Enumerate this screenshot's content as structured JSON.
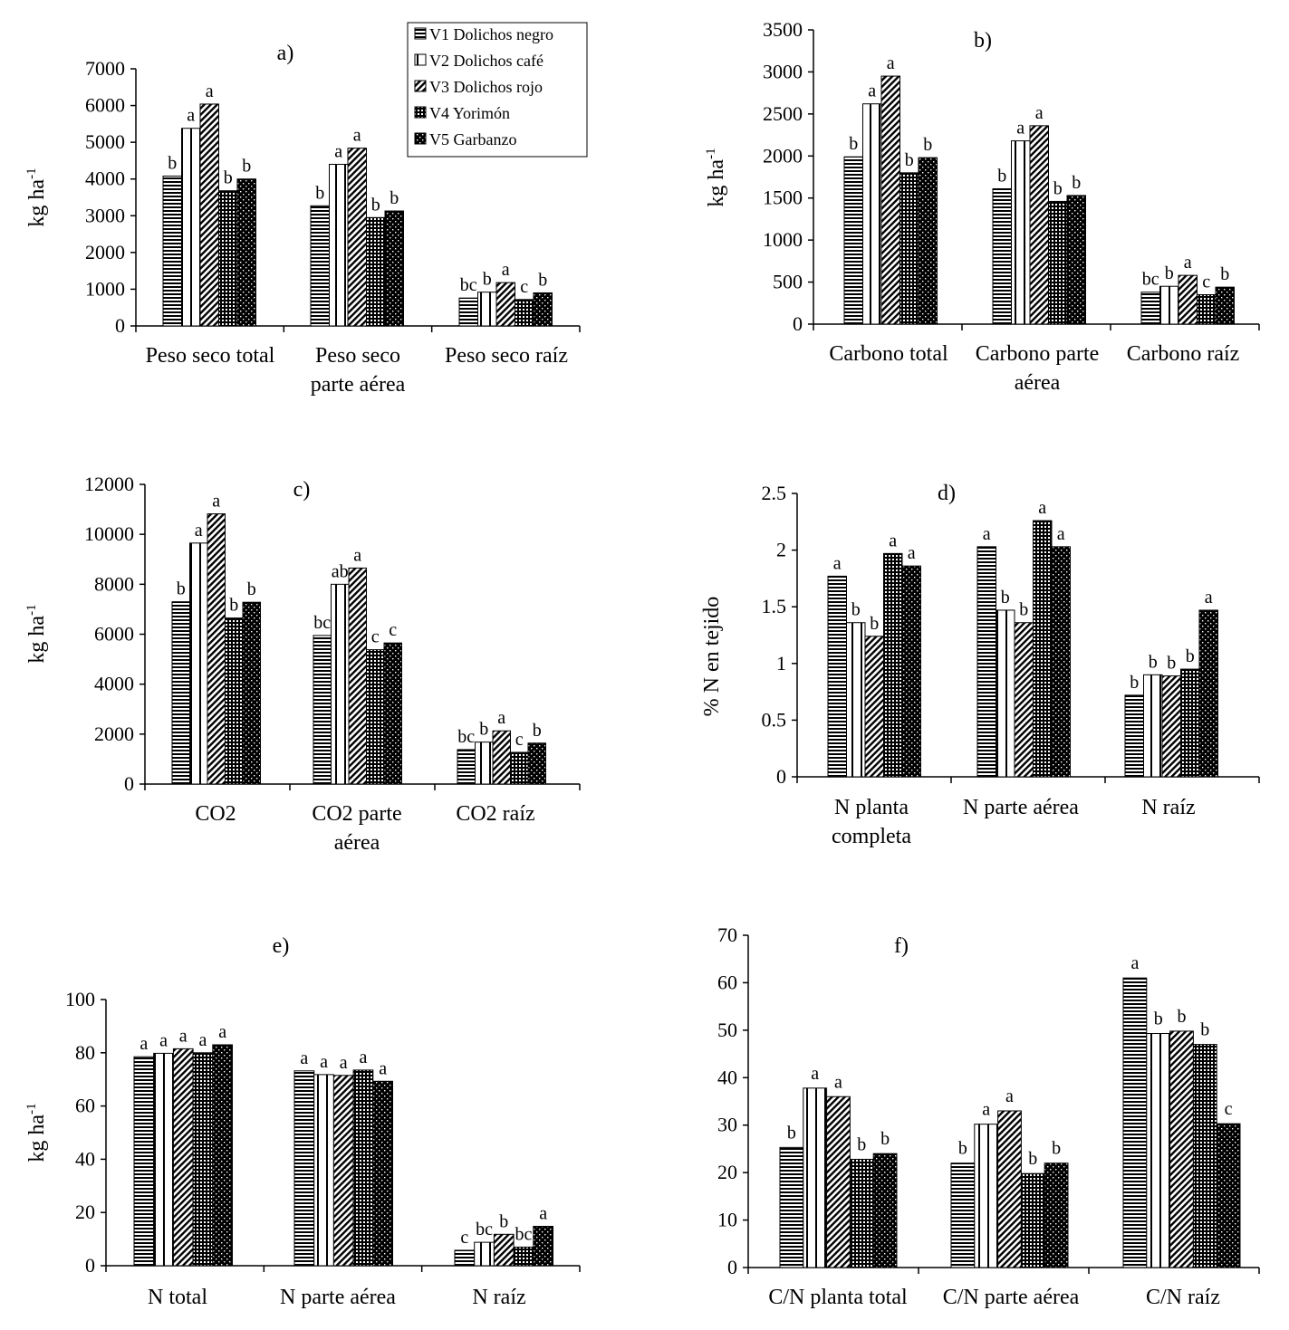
{
  "legend": {
    "items": [
      {
        "label": "V1 Dolichos negro",
        "pattern": "horizontal"
      },
      {
        "label": "V2 Dolichos café",
        "pattern": "vertical"
      },
      {
        "label": "V3 Dolichos rojo",
        "pattern": "diagonal"
      },
      {
        "label": "V4 Yorimón",
        "pattern": "grid"
      },
      {
        "label": "V5 Garbanzo",
        "pattern": "dotted"
      }
    ]
  },
  "colors": {
    "ink": "#000000",
    "background": "#ffffff"
  },
  "chart_data": [
    {
      "type": "bar",
      "title": "a)",
      "ylabel": "kg ha",
      "ylabel_sup": "-1",
      "ylim": [
        0,
        7000
      ],
      "yticks": [
        0,
        1000,
        2000,
        3000,
        4000,
        5000,
        6000,
        7000
      ],
      "categories": [
        [
          "Peso seco total"
        ],
        [
          "Peso seco",
          "parte aérea"
        ],
        [
          "Peso seco raíz"
        ]
      ],
      "series": [
        {
          "name": "V1 Dolichos negro",
          "values": [
            4080,
            3270,
            760
          ]
        },
        {
          "name": "V2 Dolichos café",
          "values": [
            5380,
            4400,
            920
          ]
        },
        {
          "name": "V3 Dolichos rojo",
          "values": [
            6040,
            4840,
            1180
          ]
        },
        {
          "name": "V4 Yorimón",
          "values": [
            3680,
            2950,
            720
          ]
        },
        {
          "name": "V5 Garbanzo",
          "values": [
            4000,
            3130,
            900
          ]
        }
      ],
      "significance": [
        [
          "b",
          "a",
          "a",
          "b",
          "b"
        ],
        [
          "b",
          "a",
          "a",
          "b",
          "b"
        ],
        [
          "bc",
          "b",
          "a",
          "c",
          "b"
        ]
      ]
    },
    {
      "type": "bar",
      "title": "b)",
      "ylabel": "kg ha",
      "ylabel_sup": "-1",
      "ylim": [
        0,
        3500
      ],
      "yticks": [
        0,
        500,
        1000,
        1500,
        2000,
        2500,
        3000,
        3500
      ],
      "categories": [
        [
          "Carbono total"
        ],
        [
          "Carbono parte",
          "aérea"
        ],
        [
          "Carbono raíz"
        ]
      ],
      "series": [
        {
          "name": "V1 Dolichos negro",
          "values": [
            1990,
            1610,
            380
          ]
        },
        {
          "name": "V2 Dolichos café",
          "values": [
            2620,
            2180,
            450
          ]
        },
        {
          "name": "V3 Dolichos rojo",
          "values": [
            2950,
            2360,
            580
          ]
        },
        {
          "name": "V4 Yorimón",
          "values": [
            1800,
            1460,
            350
          ]
        },
        {
          "name": "V5 Garbanzo",
          "values": [
            1980,
            1530,
            440
          ]
        }
      ],
      "significance": [
        [
          "b",
          "a",
          "a",
          "b",
          "b"
        ],
        [
          "b",
          "a",
          "a",
          "b",
          "b"
        ],
        [
          "bc",
          "b",
          "a",
          "c",
          "b"
        ]
      ]
    },
    {
      "type": "bar",
      "title": "c)",
      "ylabel": "kg ha",
      "ylabel_sup": "-1",
      "ylim": [
        0,
        12000
      ],
      "yticks": [
        0,
        2000,
        4000,
        6000,
        8000,
        10000,
        12000
      ],
      "categories": [
        [
          "CO2"
        ],
        [
          "CO2  parte",
          "aérea"
        ],
        [
          "CO2 raíz"
        ]
      ],
      "series": [
        {
          "name": "V1 Dolichos negro",
          "values": [
            7300,
            5950,
            1380
          ]
        },
        {
          "name": "V2 Dolichos café",
          "values": [
            9650,
            8000,
            1680
          ]
        },
        {
          "name": "V3 Dolichos rojo",
          "values": [
            10820,
            8650,
            2130
          ]
        },
        {
          "name": "V4 Yorimón",
          "values": [
            6650,
            5380,
            1270
          ]
        },
        {
          "name": "V5 Garbanzo",
          "values": [
            7280,
            5650,
            1640
          ]
        }
      ],
      "significance": [
        [
          "b",
          "a",
          "a",
          "b",
          "b"
        ],
        [
          "bc",
          "ab",
          "a",
          "c",
          "c"
        ],
        [
          "bc",
          "b",
          "a",
          "c",
          "b"
        ]
      ]
    },
    {
      "type": "bar",
      "title": "d)",
      "ylabel": "% N en tejido",
      "ylabel_sup": "",
      "ylim": [
        0,
        2.5
      ],
      "yticks": [
        0,
        0.5,
        1,
        1.5,
        2,
        2.5
      ],
      "categories": [
        [
          "N  planta",
          "completa"
        ],
        [
          "N parte aérea"
        ],
        [
          "N raíz"
        ]
      ],
      "series": [
        {
          "name": "V1 Dolichos negro",
          "values": [
            1.77,
            2.03,
            0.72
          ]
        },
        {
          "name": "V2 Dolichos café",
          "values": [
            1.36,
            1.47,
            0.9
          ]
        },
        {
          "name": "V3 Dolichos rojo",
          "values": [
            1.24,
            1.36,
            0.89
          ]
        },
        {
          "name": "V4 Yorimón",
          "values": [
            1.97,
            2.26,
            0.95
          ]
        },
        {
          "name": "V5 Garbanzo",
          "values": [
            1.86,
            2.03,
            1.47
          ]
        }
      ],
      "significance": [
        [
          "a",
          "b",
          "b",
          "a",
          "a"
        ],
        [
          "a",
          "b",
          "b",
          "a",
          "a"
        ],
        [
          "b",
          "b",
          "b",
          "b",
          "a"
        ]
      ]
    },
    {
      "type": "bar",
      "title": "e)",
      "ylabel": "kg ha",
      "ylabel_sup": "-1",
      "ylim": [
        0,
        100
      ],
      "yticks": [
        0,
        20,
        40,
        60,
        80,
        100
      ],
      "categories": [
        [
          "N total"
        ],
        [
          "N parte aérea"
        ],
        [
          "N raíz"
        ]
      ],
      "series": [
        {
          "name": "V1 Dolichos negro",
          "values": [
            78.5,
            73.2,
            5.8
          ]
        },
        {
          "name": "V2 Dolichos café",
          "values": [
            79.8,
            71.8,
            8.8
          ]
        },
        {
          "name": "V3 Dolichos rojo",
          "values": [
            81.5,
            71.5,
            11.8
          ]
        },
        {
          "name": "V4 Yorimón",
          "values": [
            80.0,
            73.5,
            7.0
          ]
        },
        {
          "name": "V5 Garbanzo",
          "values": [
            83.0,
            69.3,
            14.8
          ]
        }
      ],
      "significance": [
        [
          "a",
          "a",
          "a",
          "a",
          "a"
        ],
        [
          "a",
          "a",
          "a",
          "a",
          "a"
        ],
        [
          "c",
          "bc",
          "b",
          "bc",
          "a"
        ]
      ]
    },
    {
      "type": "bar",
      "title": "f)",
      "ylabel": "",
      "ylabel_sup": "",
      "ylim": [
        0,
        70
      ],
      "yticks": [
        0,
        10,
        20,
        30,
        40,
        50,
        60,
        70
      ],
      "categories": [
        [
          "C/N planta total"
        ],
        [
          "C/N parte aérea"
        ],
        [
          "C/N raíz"
        ]
      ],
      "series": [
        {
          "name": "V1 Dolichos negro",
          "values": [
            25.3,
            22.0,
            61.0
          ]
        },
        {
          "name": "V2 Dolichos café",
          "values": [
            37.8,
            30.2,
            49.3
          ]
        },
        {
          "name": "V3 Dolichos rojo",
          "values": [
            36.0,
            33.0,
            49.8
          ]
        },
        {
          "name": "V4 Yorimón",
          "values": [
            22.8,
            19.8,
            47.0
          ]
        },
        {
          "name": "V5 Garbanzo",
          "values": [
            24.0,
            22.0,
            30.3
          ]
        }
      ],
      "significance": [
        [
          "b",
          "a",
          "a",
          "b",
          "b"
        ],
        [
          "b",
          "a",
          "a",
          "b",
          "b"
        ],
        [
          "a",
          "b",
          "b",
          "b",
          "c"
        ]
      ]
    }
  ]
}
